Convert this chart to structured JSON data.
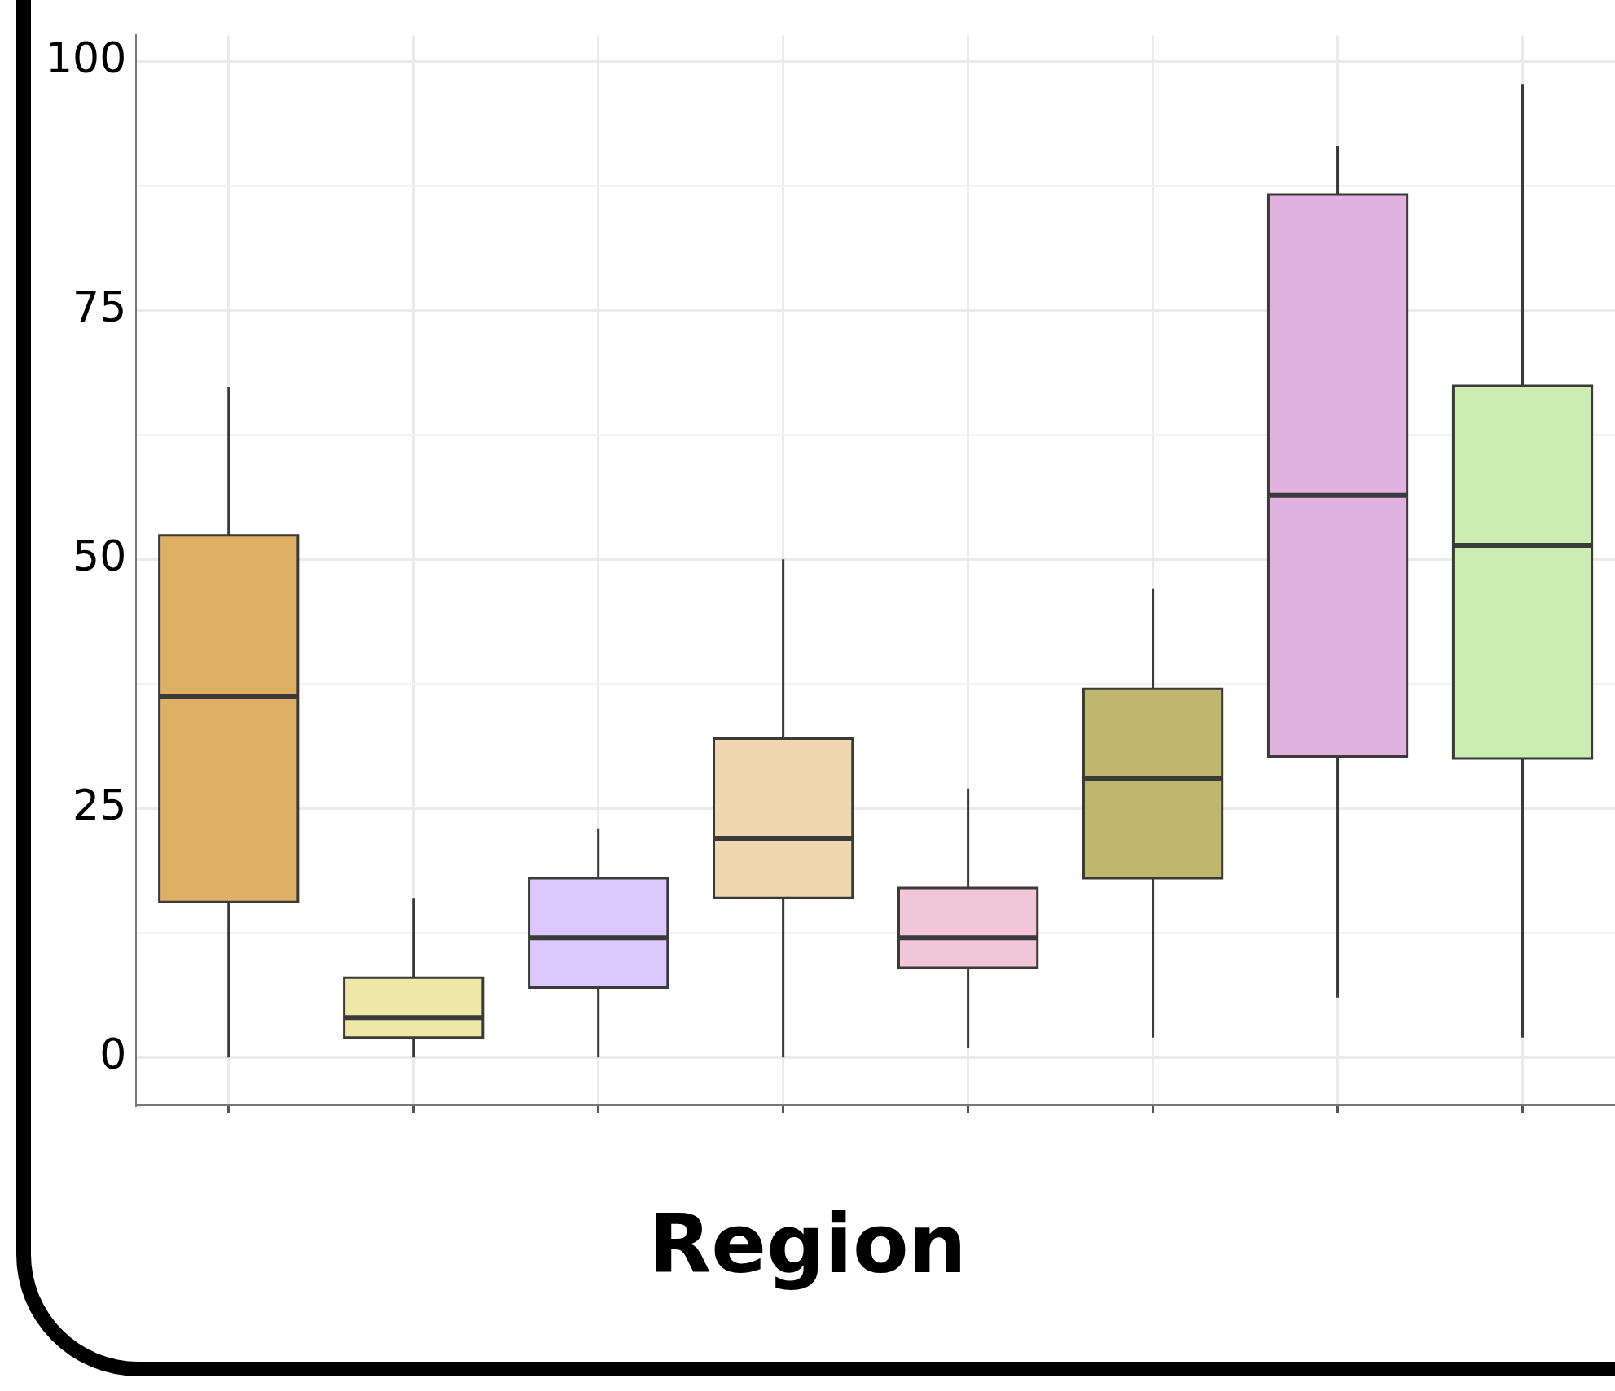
{
  "chart_data": {
    "type": "box",
    "xlabel": "Region",
    "categories": [
      null,
      null,
      null,
      null,
      null,
      null,
      null,
      null
    ],
    "colors": [
      "#deb065",
      "#ede8a6",
      "#dcc8fc",
      "#efd8b0",
      "#f1c6d8",
      "#beb76c",
      "#e1b2e0",
      "#caedb2"
    ],
    "boxes": [
      {
        "low": 0,
        "q1": 15.6,
        "median": 36.2,
        "q3": 52.4,
        "high": 67.3
      },
      {
        "low": 0,
        "q1": 2,
        "median": 4,
        "q3": 8,
        "high": 16
      },
      {
        "low": 0,
        "q1": 7,
        "median": 12,
        "q3": 18,
        "high": 23
      },
      {
        "low": 0,
        "q1": 16,
        "median": 22,
        "q3": 32,
        "high": 50
      },
      {
        "low": 1,
        "q1": 9,
        "median": 12,
        "q3": 17,
        "high": 27
      },
      {
        "low": 2,
        "q1": 18,
        "median": 28,
        "q3": 37,
        "high": 47
      },
      {
        "low": 6,
        "q1": 30.2,
        "median": 56.4,
        "q3": 86.6,
        "high": 91.5
      },
      {
        "low": 2,
        "q1": 30,
        "median": 51.4,
        "q3": 67.4,
        "high": 97.7
      }
    ],
    "ylim": [
      -4.8,
      102.6
    ],
    "yticks": [
      0,
      {
        "value": 12.5,
        "label": null
      },
      25,
      {
        "value": 37.5,
        "label": null
      },
      50,
      {
        "value": 62.5,
        "label": null
      },
      75,
      {
        "value": 87.5,
        "label": null
      },
      100
    ],
    "grid": true,
    "legend": false
  }
}
